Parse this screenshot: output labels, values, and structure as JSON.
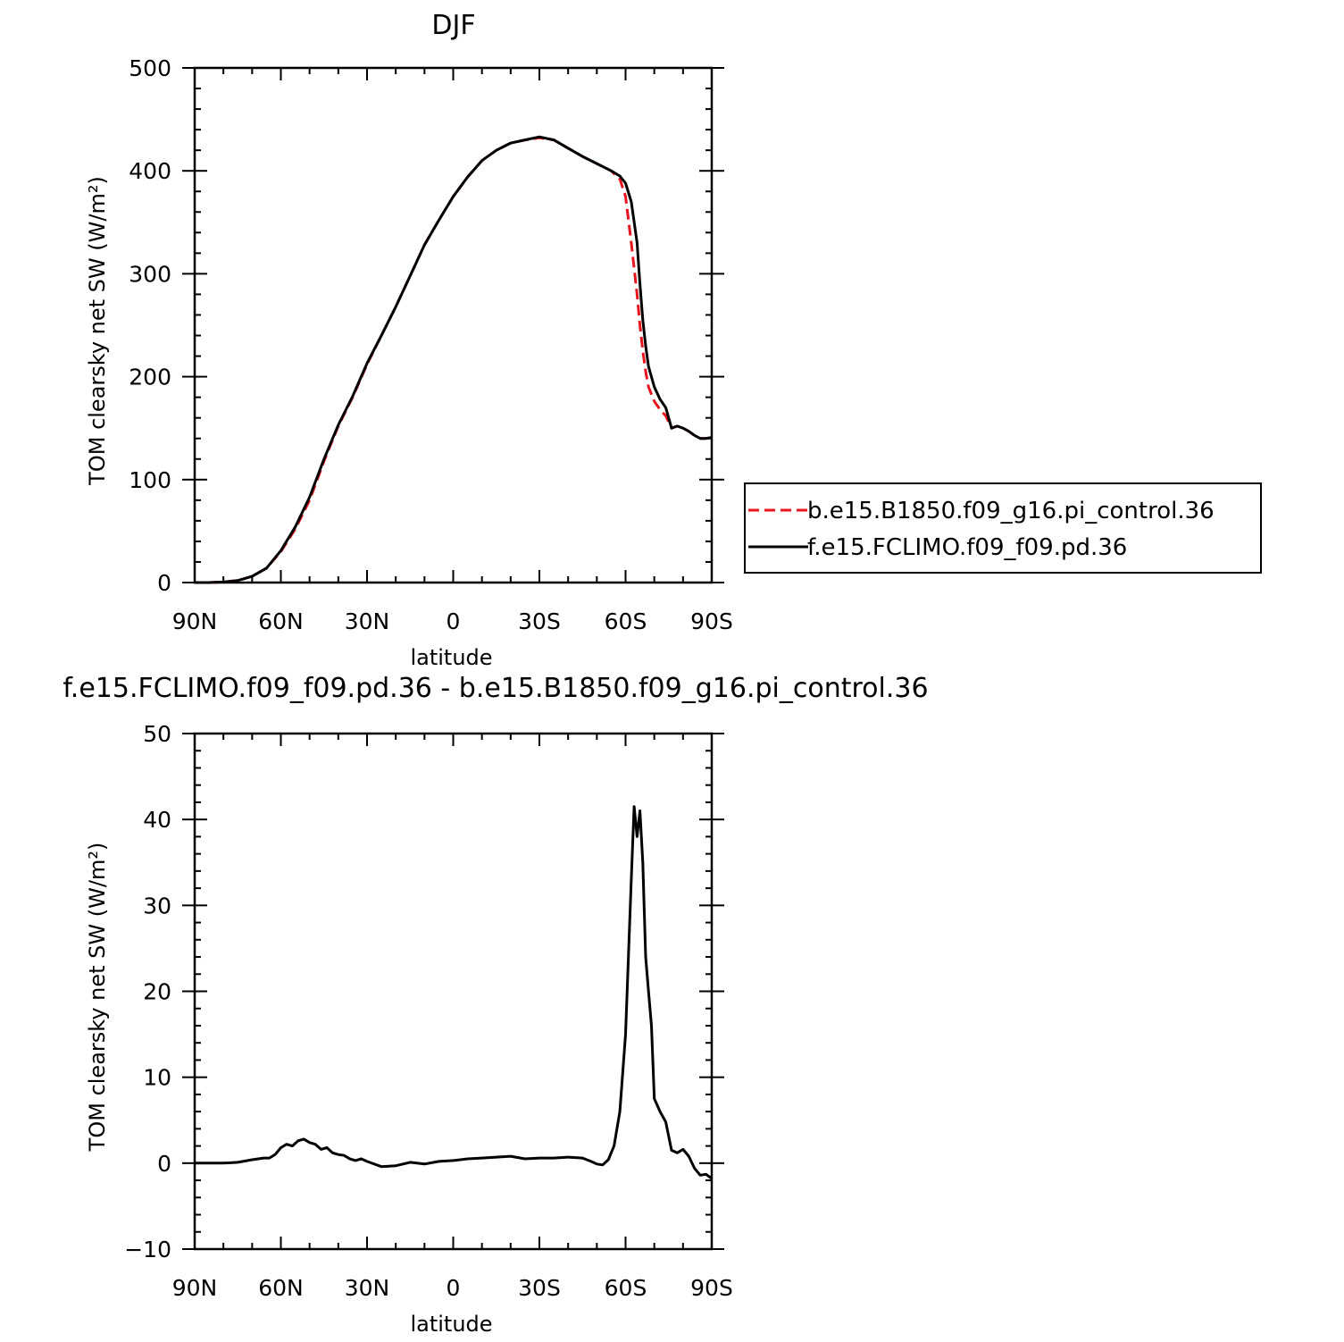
{
  "chart_data": [
    {
      "type": "line",
      "title": "DJF",
      "xlabel": "latitude",
      "ylabel": "TOM clearsky net SW (W/m²)",
      "xlim": [
        90,
        -90
      ],
      "ylim": [
        0,
        500
      ],
      "yticks": [
        "0",
        "100",
        "200",
        "300",
        "400",
        "500"
      ],
      "xticks": [
        "90N",
        "60N",
        "30N",
        "0",
        "30S",
        "60S",
        "90S"
      ],
      "grid": false,
      "legend": "right",
      "x": [
        90,
        85,
        80,
        75,
        70,
        65,
        60,
        55,
        50,
        45,
        40,
        35,
        30,
        25,
        20,
        15,
        10,
        5,
        0,
        -5,
        -10,
        -15,
        -20,
        -25,
        -30,
        -35,
        -40,
        -45,
        -50,
        -55,
        -58,
        -60,
        -62,
        -64,
        -65,
        -66,
        -67,
        -68,
        -70,
        -72,
        -74,
        -76,
        -78,
        -80,
        -82,
        -84,
        -86,
        -88,
        -90
      ],
      "series": [
        {
          "name": "b.e15.B1850.f09_g16.pi_control.36",
          "color": "#e8141e",
          "style": "dashed",
          "values": [
            0,
            0,
            0.5,
            2,
            6,
            14,
            30,
            52,
            80,
            118,
            152,
            180,
            212,
            240,
            268,
            298,
            328,
            352,
            375,
            394,
            410,
            420,
            427,
            430,
            432,
            430,
            422,
            414,
            407,
            400,
            392,
            375,
            330,
            280,
            250,
            225,
            205,
            190,
            176,
            168,
            162,
            150,
            152,
            150,
            147,
            143,
            140,
            140,
            141
          ]
        },
        {
          "name": "f.e15.FCLIMO.f09_f09.pd.36",
          "color": "#000000",
          "style": "solid",
          "values": [
            0,
            0,
            0.5,
            2,
            6,
            14,
            31,
            54,
            83,
            120,
            153,
            181,
            213,
            240,
            268,
            298,
            328,
            352,
            375,
            394,
            410,
            420,
            427,
            430,
            433,
            430,
            422,
            414,
            407,
            400,
            395,
            388,
            370,
            330,
            290,
            255,
            230,
            210,
            190,
            178,
            170,
            150,
            152,
            150,
            147,
            143,
            140,
            140,
            141
          ]
        }
      ]
    },
    {
      "type": "line",
      "title": "f.e15.FCLIMO.f09_f09.pd.36 - b.e15.B1850.f09_g16.pi_control.36",
      "xlabel": "latitude",
      "ylabel": "TOM clearsky net SW (W/m²)",
      "xlim": [
        90,
        -90
      ],
      "ylim": [
        -10,
        50
      ],
      "yticks": [
        "−10",
        "0",
        "10",
        "20",
        "30",
        "40",
        "50"
      ],
      "xticks": [
        "90N",
        "60N",
        "30N",
        "0",
        "30S",
        "60S",
        "90S"
      ],
      "grid": false,
      "legend": "none",
      "x": [
        90,
        80,
        75,
        70,
        66,
        64,
        62,
        60,
        58,
        56,
        54,
        52,
        50,
        48,
        46,
        44,
        42,
        40,
        38,
        36,
        34,
        32,
        30,
        25,
        20,
        15,
        10,
        5,
        0,
        -5,
        -10,
        -15,
        -20,
        -25,
        -30,
        -35,
        -40,
        -45,
        -48,
        -50,
        -52,
        -54,
        -56,
        -58,
        -60,
        -61,
        -62,
        -63,
        -64,
        -65,
        -66,
        -67,
        -68,
        -69,
        -70,
        -72,
        -74,
        -76,
        -78,
        -80,
        -82,
        -84,
        -86,
        -88,
        -90
      ],
      "series": [
        {
          "name": "",
          "color": "#000000",
          "style": "solid",
          "values": [
            0,
            0,
            0.1,
            0.4,
            0.6,
            0.6,
            1.0,
            1.8,
            2.2,
            2.0,
            2.6,
            2.8,
            2.4,
            2.2,
            1.6,
            1.8,
            1.2,
            1.0,
            0.9,
            0.5,
            0.3,
            0.5,
            0.2,
            -0.4,
            -0.3,
            0.1,
            -0.1,
            0.2,
            0.3,
            0.5,
            0.6,
            0.7,
            0.8,
            0.5,
            0.6,
            0.6,
            0.7,
            0.6,
            0.2,
            -0.1,
            -0.2,
            0.4,
            2.0,
            6.0,
            15.0,
            24.0,
            33.0,
            41.5,
            38.0,
            41.0,
            35.0,
            24.0,
            20.0,
            16.0,
            7.5,
            6.0,
            4.8,
            1.5,
            1.2,
            1.6,
            0.8,
            -0.6,
            -1.4,
            -1.3,
            -1.8
          ]
        }
      ]
    }
  ]
}
